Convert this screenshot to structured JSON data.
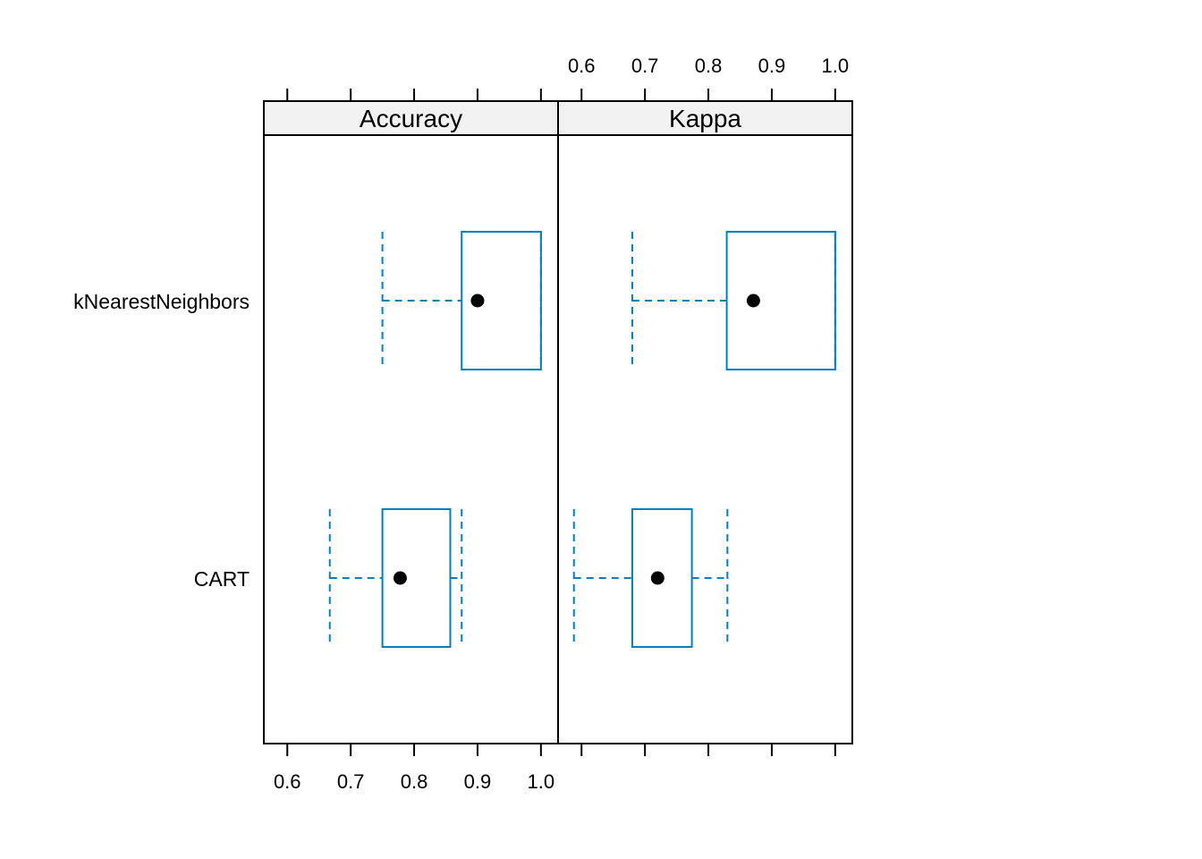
{
  "chart_data": {
    "type": "boxplot",
    "categories": [
      "kNearestNeighbors",
      "CART"
    ],
    "panels": [
      {
        "title": "Accuracy",
        "xlim": [
          0.563,
          1.027
        ],
        "ticks": [
          0.6,
          0.7,
          0.8,
          0.9,
          1.0
        ],
        "tick_labels": [
          "0.6",
          "0.7",
          "0.8",
          "0.9",
          "1.0"
        ],
        "tick_labels_position": "bottom",
        "boxes": [
          {
            "category": "kNearestNeighbors",
            "min": 0.75,
            "q1": 0.875,
            "median": 0.9,
            "q3": 1.0,
            "max": 1.0
          },
          {
            "category": "CART",
            "min": 0.667,
            "q1": 0.75,
            "median": 0.778,
            "q3": 0.857,
            "max": 0.875
          }
        ]
      },
      {
        "title": "Kappa",
        "xlim": [
          0.563,
          1.027
        ],
        "ticks": [
          0.6,
          0.7,
          0.8,
          0.9,
          1.0
        ],
        "tick_labels": [
          "0.6",
          "0.7",
          "0.8",
          "0.9",
          "1.0"
        ],
        "tick_labels_position": "top",
        "boxes": [
          {
            "category": "kNearestNeighbors",
            "min": 0.68,
            "q1": 0.829,
            "median": 0.871,
            "q3": 1.0,
            "max": 1.0
          },
          {
            "category": "CART",
            "min": 0.588,
            "q1": 0.68,
            "median": 0.72,
            "q3": 0.774,
            "max": 0.83
          }
        ]
      }
    ],
    "box_color": "#0080BF",
    "median_color": "#000000",
    "strip_color": "#F2F2F2",
    "grid": false
  }
}
